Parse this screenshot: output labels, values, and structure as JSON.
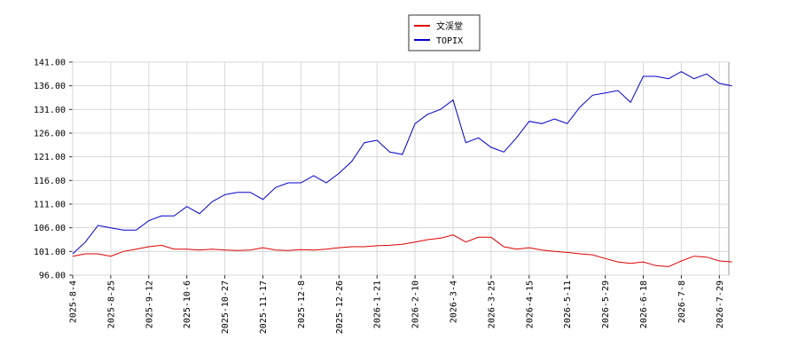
{
  "chart_data": {
    "type": "line",
    "categories": [
      "2025-8-4",
      null,
      null,
      "2025-8-25",
      null,
      null,
      "2025-9-12",
      null,
      null,
      "2025-10-6",
      null,
      null,
      "2025-10-27",
      null,
      null,
      "2025-11-17",
      null,
      null,
      "2025-12-8",
      null,
      null,
      "2025-12-26",
      null,
      null,
      "2026-1-21",
      null,
      null,
      "2026-2-10",
      null,
      null,
      "2026-3-4",
      null,
      null,
      "2026-3-25",
      null,
      null,
      "2026-4-15",
      null,
      null,
      "2026-5-11",
      null,
      null,
      "2026-5-29",
      null,
      null,
      "2026-6-18",
      null,
      null,
      "2026-7-8",
      null,
      null,
      "2026-7-29",
      null
    ],
    "series": [
      {
        "name": "文渓堂",
        "color": "#dd0000",
        "values": [
          100,
          100.5,
          100.5,
          100,
          101,
          101.5,
          102,
          102.3,
          101.5,
          101.5,
          101.3,
          101.5,
          101.3,
          101.2,
          101.3,
          101.8,
          101.3,
          101.2,
          101.4,
          101.3,
          101.5,
          101.8,
          102,
          102,
          102.2,
          102.3,
          102.5,
          103,
          103.5,
          103.8,
          104.5,
          103,
          104,
          104,
          102,
          101.5,
          101.8,
          101.3,
          101,
          100.8,
          100.5,
          100.3,
          99.5,
          98.8,
          98.5,
          98.8,
          98,
          97.8,
          99,
          100,
          99.8,
          99,
          98.8
        ]
      },
      {
        "name": "TOPIX",
        "color": "#0000cc",
        "values": [
          100.5,
          103,
          106.5,
          106,
          105.5,
          105.5,
          107.5,
          108.5,
          108.5,
          110.5,
          109,
          111.5,
          113,
          113.5,
          113.5,
          112,
          114.5,
          115.5,
          115.5,
          117,
          115.5,
          117.5,
          120,
          124,
          124.5,
          122,
          121.5,
          128,
          130,
          131,
          133,
          124,
          125,
          123,
          122,
          125,
          128.5,
          128,
          129,
          128,
          131.5,
          134,
          134.5,
          135,
          132.5,
          138,
          138,
          137.5,
          139,
          137.5,
          138.5,
          136.5,
          136
        ]
      }
    ],
    "ylim": [
      96,
      141
    ],
    "yticks": [
      {
        "value": 96,
        "label": "96.00"
      },
      {
        "value": 101,
        "label": "101.00"
      },
      {
        "value": 106,
        "label": "106.00"
      },
      {
        "value": 111,
        "label": "111.00"
      },
      {
        "value": 116,
        "label": "116.00"
      },
      {
        "value": 121,
        "label": "121.00"
      },
      {
        "value": 126,
        "label": "126.00"
      },
      {
        "value": 131,
        "label": "131.00"
      },
      {
        "value": 136,
        "label": "136.00"
      },
      {
        "value": 141,
        "label": "141.00"
      }
    ],
    "grid": true
  }
}
